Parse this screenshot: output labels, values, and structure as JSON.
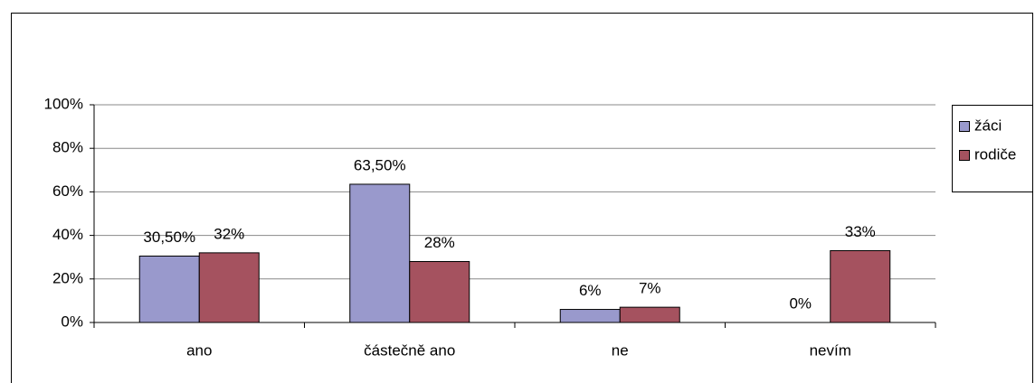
{
  "chart_data": {
    "type": "bar",
    "categories": [
      "ano",
      "částečně ano",
      "ne",
      "nevím"
    ],
    "series": [
      {
        "name": "žáci",
        "color": "#9999cc",
        "values": [
          30.5,
          63.5,
          6,
          0
        ],
        "value_labels": [
          "30,50%",
          "63,50%",
          "6%",
          "0%"
        ]
      },
      {
        "name": "rodiče",
        "color": "#a5525f",
        "values": [
          32,
          28,
          7,
          33
        ],
        "value_labels": [
          "32%",
          "28%",
          "7%",
          "33%"
        ]
      }
    ],
    "ylim": [
      0,
      100
    ],
    "yticks": [
      {
        "value": 0,
        "label": "0%"
      },
      {
        "value": 20,
        "label": "20%"
      },
      {
        "value": 40,
        "label": "40%"
      },
      {
        "value": 60,
        "label": "60%"
      },
      {
        "value": 80,
        "label": "80%"
      },
      {
        "value": 100,
        "label": "100%"
      }
    ],
    "grid": true,
    "legend": "right"
  }
}
